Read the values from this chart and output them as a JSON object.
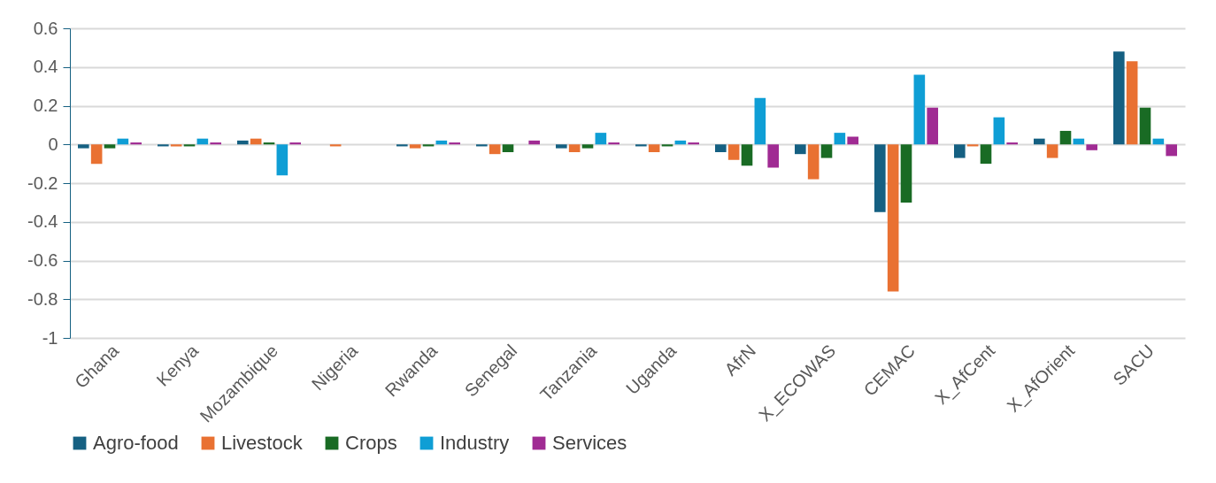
{
  "chart_data": {
    "type": "bar",
    "categories": [
      "Ghana",
      "Kenya",
      "Mozambique",
      "Nigeria",
      "Rwanda",
      "Senegal",
      "Tanzania",
      "Uganda",
      "AfrN",
      "X_ECOWAS",
      "CEMAC",
      "X_AfCent",
      "X_AfOrient",
      "SACU"
    ],
    "series": [
      {
        "name": "Agro-food",
        "color": "#156082",
        "values": [
          -0.02,
          -0.01,
          0.02,
          0,
          -0.01,
          -0.01,
          -0.02,
          -0.01,
          -0.04,
          -0.05,
          -0.35,
          -0.07,
          0.03,
          0.48
        ]
      },
      {
        "name": "Livestock",
        "color": "#e97132",
        "values": [
          -0.1,
          -0.01,
          0.03,
          -0.01,
          -0.02,
          -0.05,
          -0.04,
          -0.04,
          -0.08,
          -0.18,
          -0.76,
          -0.01,
          -0.07,
          0.43
        ]
      },
      {
        "name": "Crops",
        "color": "#196b24",
        "values": [
          -0.02,
          -0.01,
          0.01,
          0,
          -0.01,
          -0.04,
          -0.02,
          -0.01,
          -0.11,
          -0.07,
          -0.3,
          -0.1,
          0.07,
          0.19
        ]
      },
      {
        "name": "Industry",
        "color": "#0f9ed5",
        "values": [
          0.03,
          0.03,
          -0.16,
          0,
          0.02,
          0,
          0.06,
          0.02,
          0.24,
          0.06,
          0.36,
          0.14,
          0.03,
          0.03
        ]
      },
      {
        "name": "Services",
        "color": "#a02b93",
        "values": [
          0.01,
          0.01,
          0.01,
          0,
          0.01,
          0.02,
          0.01,
          0.01,
          -0.12,
          0.04,
          0.19,
          0.01,
          -0.03,
          -0.06
        ]
      }
    ],
    "ylim": [
      -1,
      0.6
    ],
    "yticks": [
      -1,
      -0.8,
      -0.6,
      -0.4,
      -0.2,
      0,
      0.2,
      0.4,
      0.6
    ],
    "grid": "y",
    "legend": "bottom"
  }
}
